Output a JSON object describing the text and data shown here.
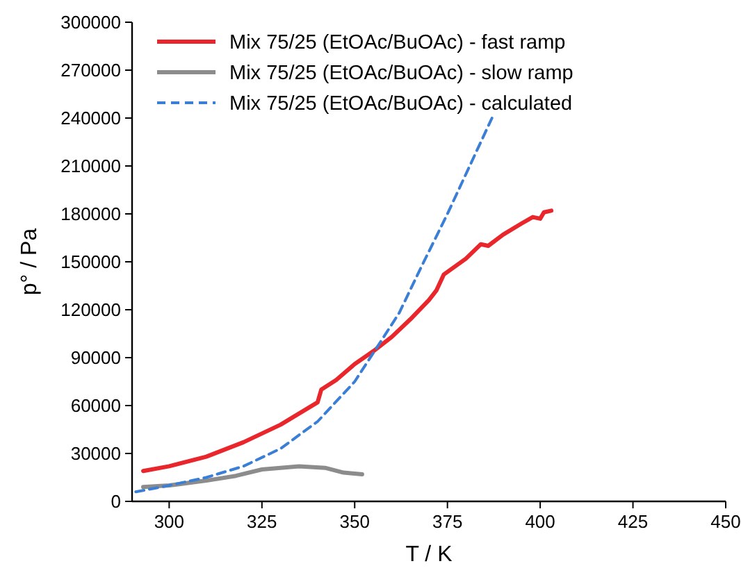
{
  "chart_data": {
    "type": "line",
    "xlabel": "T / K",
    "ylabel": "p° / Pa",
    "xlim": [
      290,
      450
    ],
    "ylim": [
      0,
      300000
    ],
    "xticks": [
      300,
      325,
      350,
      375,
      400,
      425,
      450
    ],
    "yticks": [
      0,
      30000,
      60000,
      90000,
      120000,
      150000,
      180000,
      210000,
      240000,
      270000,
      300000
    ],
    "legend": "top left",
    "grid": false,
    "series": [
      {
        "name": "Mix 75/25 (EtOAc/BuOAc) - fast ramp",
        "color": "#e8262b",
        "line_style": "solid",
        "x": [
          293,
          300,
          310,
          320,
          330,
          340,
          341,
          345,
          350,
          355,
          360,
          365,
          370,
          372,
          374,
          380,
          384,
          386,
          390,
          395,
          398,
          400,
          401,
          403
        ],
        "values": [
          19000,
          22000,
          28000,
          37000,
          48000,
          62000,
          70000,
          76000,
          86000,
          94000,
          103000,
          114000,
          126000,
          132000,
          142000,
          152000,
          161000,
          160000,
          167000,
          174000,
          178000,
          177000,
          181000,
          182000
        ]
      },
      {
        "name": "Mix 75/25 (EtOAc/BuOAc) - slow ramp",
        "color": "#8c8c8c",
        "line_style": "solid",
        "x": [
          293,
          300,
          310,
          318,
          325,
          335,
          342,
          347,
          352
        ],
        "values": [
          9000,
          10000,
          13000,
          16000,
          20000,
          22000,
          21000,
          18000,
          17000
        ]
      },
      {
        "name": "Mix 75/25 (EtOAc/BuOAc) - calculated",
        "color": "#3a7fd5",
        "line_style": "dashed",
        "x": [
          291,
          300,
          310,
          320,
          330,
          340,
          350,
          357,
          362,
          368,
          375,
          380,
          384,
          387
        ],
        "values": [
          6000,
          10000,
          15000,
          22000,
          33000,
          50000,
          75000,
          100000,
          118000,
          147000,
          180000,
          205000,
          225000,
          240000
        ]
      }
    ]
  }
}
